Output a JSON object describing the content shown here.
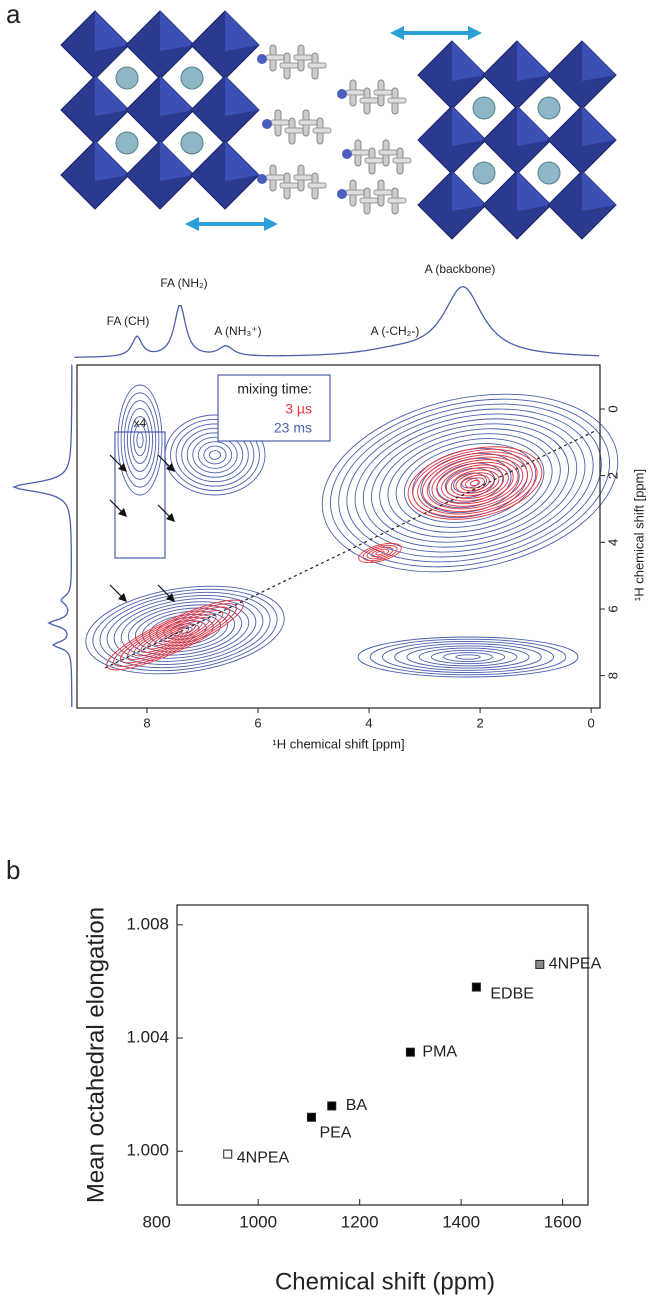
{
  "chart_data": [
    {
      "panel": "a",
      "type": "contour",
      "xlabel": "¹H chemical shift [ppm]",
      "ylabel": "¹H chemical shift [ppm]",
      "xlim": [
        9.26,
        -0.16
      ],
      "xticks": [
        8,
        6,
        4,
        2,
        0
      ],
      "ylim": [
        -1.32,
        8.97
      ],
      "yticks": [
        0,
        2,
        4,
        6,
        8
      ],
      "annotations": [
        "FA (CH)",
        "FA (NH₂)",
        "A (NH₃⁺)",
        "A (-CH₂-)",
        "A (backbone)",
        "x4"
      ],
      "legend": {
        "title": "mixing time:",
        "entries": [
          {
            "name": "3 µs",
            "color": "#e8303a"
          },
          {
            "name": "23 ms",
            "color": "#4a5fae"
          }
        ]
      }
    },
    {
      "panel": "b",
      "type": "scatter",
      "xlabel": "Chemical shift (ppm)",
      "ylabel": "Mean octahedral elongation",
      "x": [
        1555,
        1430,
        1300,
        1145,
        1105,
        940
      ],
      "values": [
        1.0066,
        1.0058,
        1.0035,
        1.0016,
        1.0012,
        0.9999
      ],
      "point_labels": [
        "4NPEA",
        "EDBE",
        "PMA",
        "BA",
        "PEA",
        "4NPEA"
      ],
      "marker_fills": [
        "#8c8c8c",
        "#000000",
        "#000000",
        "#000000",
        "#000000",
        "#ffffff"
      ],
      "xlim": [
        840,
        1650
      ],
      "xticks": [
        800,
        1000,
        1200,
        1400,
        1600
      ],
      "ylim": [
        0.9981,
        1.0087
      ],
      "yticks": [
        {
          "value": 1,
          "label": "1.000"
        },
        1.004,
        1.008
      ]
    }
  ]
}
